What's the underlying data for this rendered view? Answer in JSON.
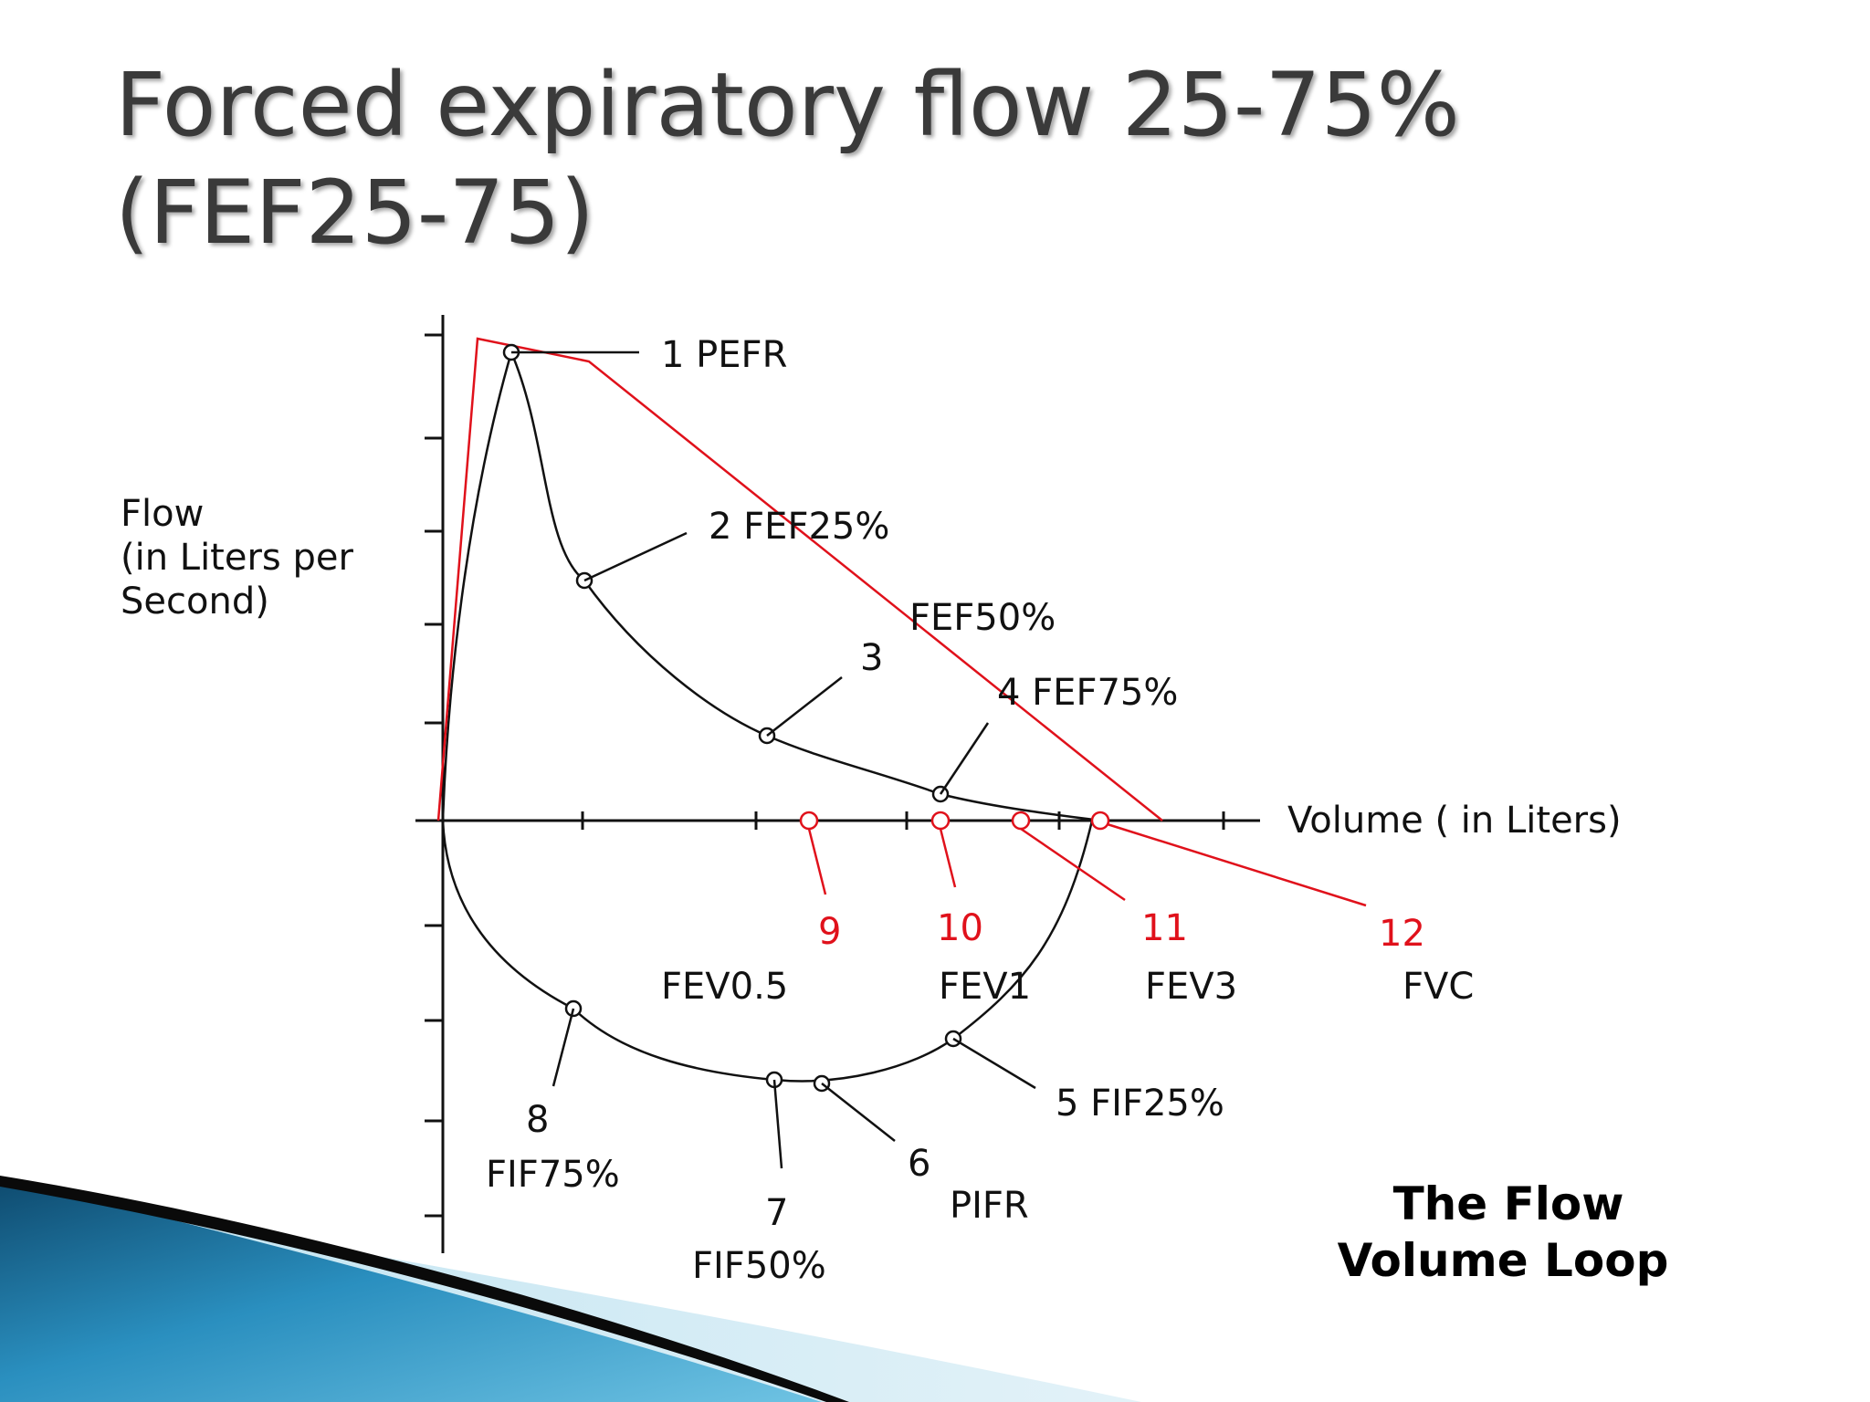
{
  "slide": {
    "title_line1": "Forced expiratory flow 25-75%",
    "title_line2": "(FEF25-75)"
  },
  "diagram": {
    "y_axis_label": [
      "Flow",
      "(in Liters per",
      "Second)"
    ],
    "x_axis_label": "Volume ( in Liters)",
    "caption": [
      "The Flow",
      "Volume Loop"
    ],
    "labels": {
      "pefr": "1 PEFR",
      "fef25": "2 FEF25%",
      "fef50_name": "FEF50%",
      "fef50_num": "3",
      "fef75": "4  FEF75%",
      "fif25": "5  FIF25%",
      "pifr_num": "6",
      "pifr_name": "PIFR",
      "fif50_num": "7",
      "fif50_name": "FIF50%",
      "fif75_num": "8",
      "fif75_name": "FIF75%",
      "fev05_num": "9",
      "fev05_name": "FEV0.5",
      "fev1_num": "10",
      "fev1_name": "FEV1",
      "fev3_num": "11",
      "fev3_name": "FEV3",
      "fvc_num": "12",
      "fvc_name": "FVC"
    },
    "colors": {
      "curve": "#111111",
      "annotation_red": "#e0111b"
    }
  }
}
